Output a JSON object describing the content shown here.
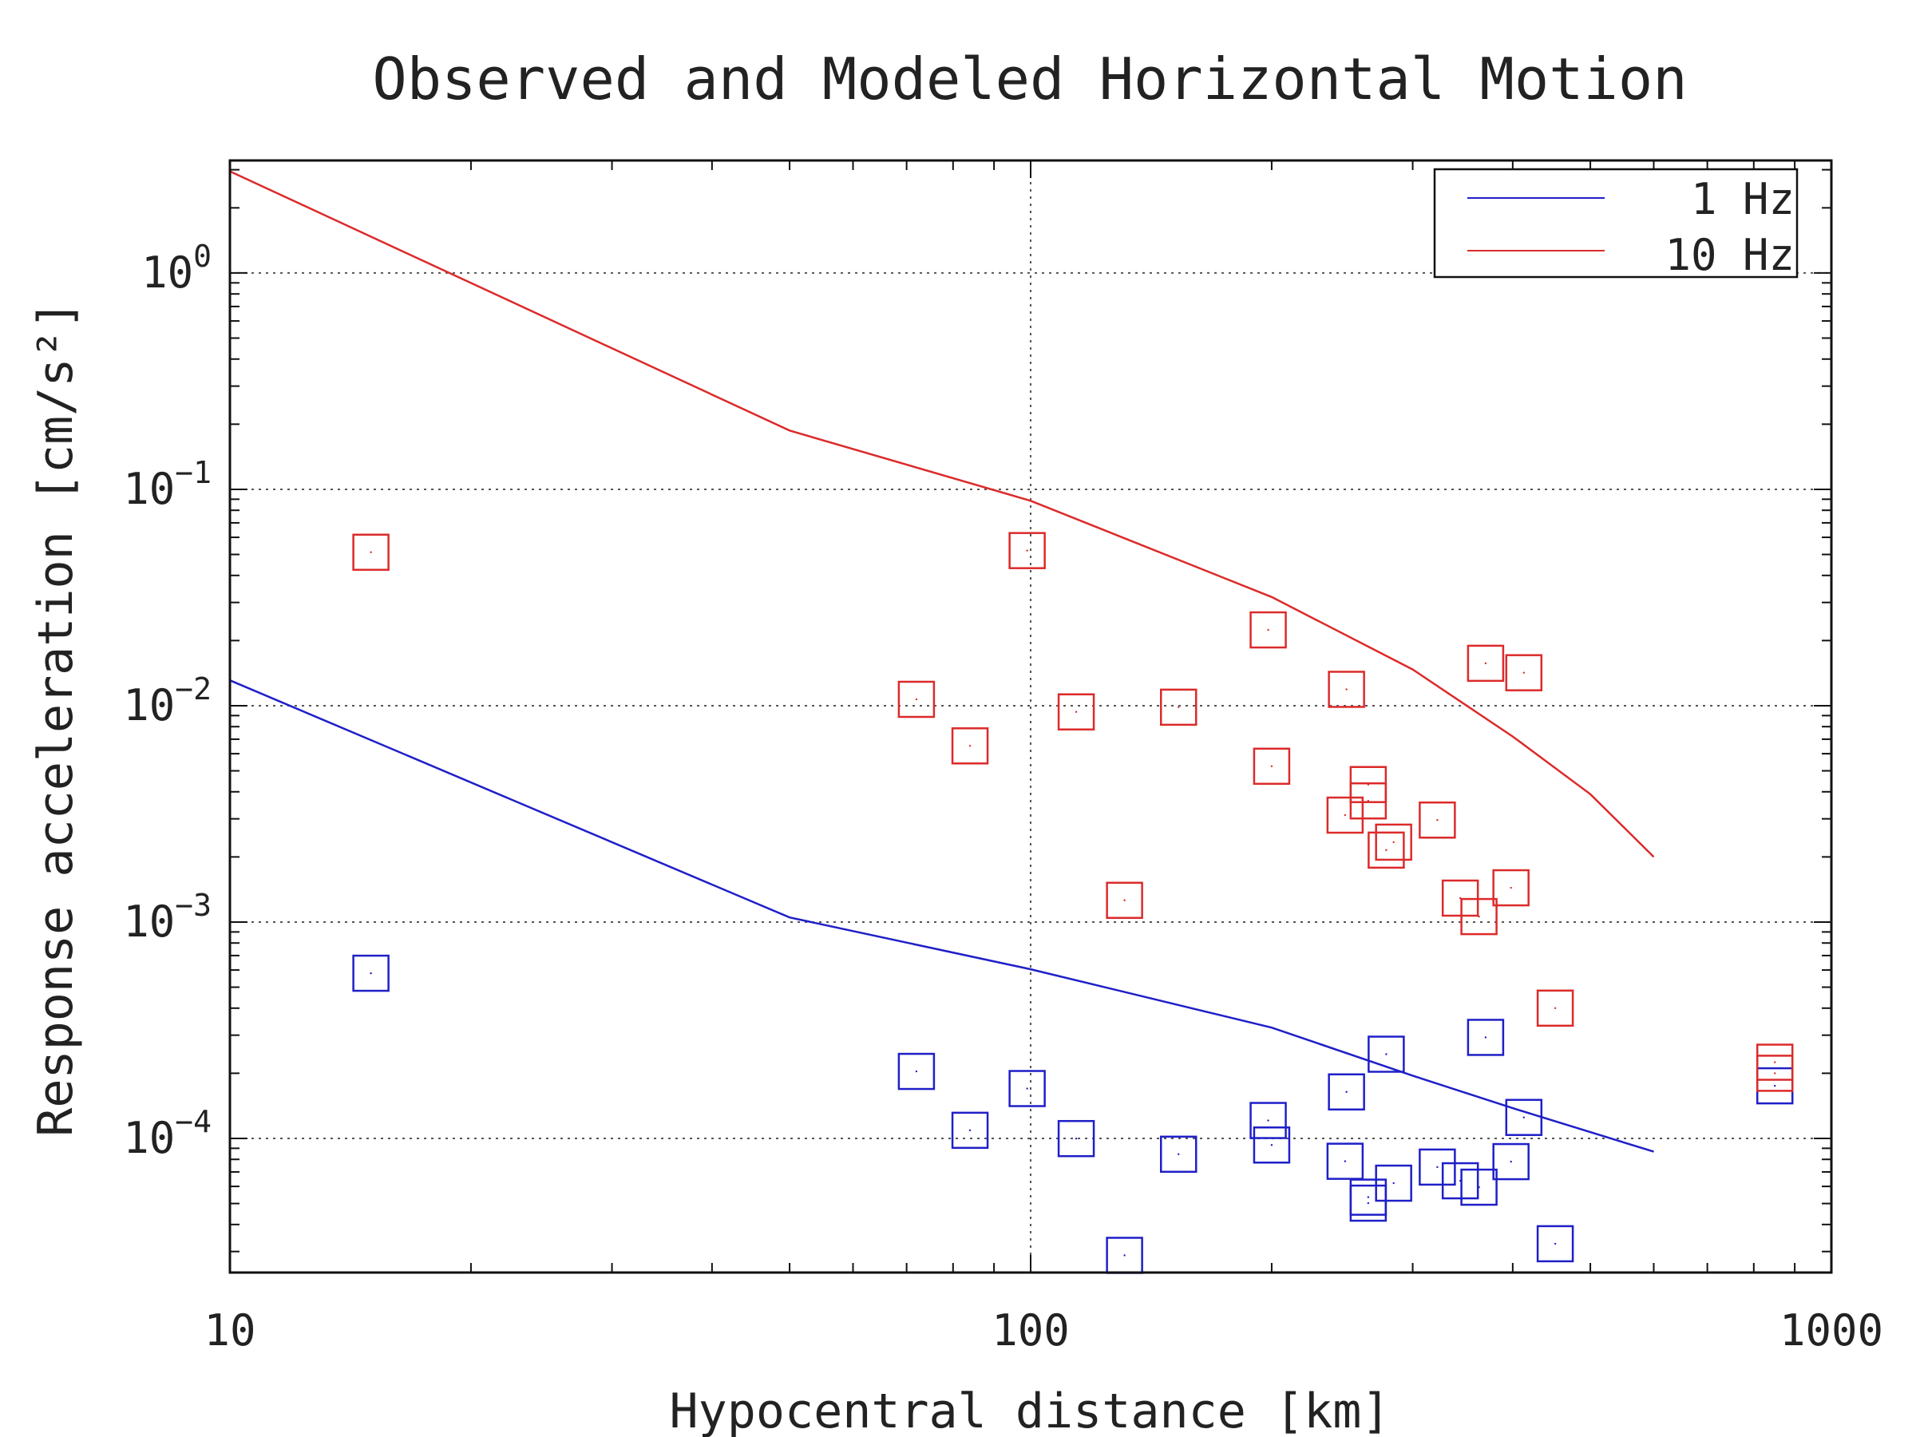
{
  "chart_data": {
    "type": "scatter",
    "title": "Observed and Modeled Horizontal Motion",
    "xlabel": "Hypocentral distance [km]",
    "ylabel": "Response acceleration [cm/s²]",
    "x_scale": "log",
    "y_scale": "log",
    "xlim": [
      10,
      1000
    ],
    "ylim_exp": [
      -4.62,
      0.52
    ],
    "x_ticks": [
      {
        "label": "10",
        "value": 10
      },
      {
        "label": "100",
        "value": 100
      },
      {
        "label": "1000",
        "value": 1000
      }
    ],
    "y_ticks": [
      {
        "base": "10",
        "exp": "0",
        "value": 1
      },
      {
        "base": "10",
        "exp": "−1",
        "value": 0.1
      },
      {
        "base": "10",
        "exp": "−2",
        "value": 0.01
      },
      {
        "base": "10",
        "exp": "−3",
        "value": 0.001
      },
      {
        "base": "10",
        "exp": "−4",
        "value": 0.0001
      }
    ],
    "grid": "dotted at major ticks",
    "legend_position": "top-right",
    "colors": {
      "one_hz": "#1f1fc8",
      "ten_hz": "#dc2a2a"
    },
    "series": [
      {
        "name": "1 Hz",
        "kind": "model-line",
        "color": "#1f1fc8",
        "points": [
          [
            10,
            0.0131
          ],
          [
            50,
            0.00105
          ],
          [
            100,
            0.000605
          ],
          [
            200,
            0.000325
          ],
          [
            300,
            0.000195
          ],
          [
            400,
            0.000138
          ],
          [
            600,
            8.68e-05
          ]
        ]
      },
      {
        "name": "10 Hz",
        "kind": "model-line",
        "color": "#dc2a2a",
        "points": [
          [
            10,
            2.95
          ],
          [
            50,
            0.187
          ],
          [
            100,
            0.0885
          ],
          [
            200,
            0.0318
          ],
          [
            300,
            0.0147
          ],
          [
            400,
            0.0072
          ],
          [
            500,
            0.0039
          ],
          [
            600,
            0.002
          ]
        ]
      },
      {
        "name": "1 Hz observed",
        "kind": "observed",
        "color": "#1f1fc8",
        "points": [
          [
            15,
            0.00058
          ],
          [
            72,
            0.000204
          ],
          [
            84,
            0.000109
          ],
          [
            99,
            0.00017
          ],
          [
            114,
            9.98e-05
          ],
          [
            131,
            2.88e-05
          ],
          [
            153,
            8.45e-05
          ],
          [
            198,
            0.000121
          ],
          [
            200,
            9.32e-05
          ],
          [
            247,
            7.84e-05
          ],
          [
            248,
            0.000164
          ],
          [
            264,
            5.02e-05
          ],
          [
            264,
            5.35e-05
          ],
          [
            278,
            0.000245
          ],
          [
            284,
            6.21e-05
          ],
          [
            322,
            7.37e-05
          ],
          [
            344,
            6.37e-05
          ],
          [
            363,
            5.95e-05
          ],
          [
            370,
            0.000293
          ],
          [
            398,
            7.81e-05
          ],
          [
            413,
            0.000125
          ],
          [
            452,
            3.26e-05
          ],
          [
            850,
            0.000175
          ]
        ]
      },
      {
        "name": "10 Hz observed",
        "kind": "observed",
        "color": "#dc2a2a",
        "points": [
          [
            15,
            0.0512
          ],
          [
            72,
            0.0107
          ],
          [
            84,
            0.00652
          ],
          [
            99,
            0.0521
          ],
          [
            114,
            0.00936
          ],
          [
            131,
            0.00126
          ],
          [
            153,
            0.00984
          ],
          [
            198,
            0.0224
          ],
          [
            200,
            0.00525
          ],
          [
            247,
            0.00312
          ],
          [
            248,
            0.0119
          ],
          [
            264,
            0.00432
          ],
          [
            264,
            0.00363
          ],
          [
            278,
            0.00215
          ],
          [
            284,
            0.00234
          ],
          [
            322,
            0.00296
          ],
          [
            344,
            0.00129
          ],
          [
            363,
            0.00106
          ],
          [
            370,
            0.0157
          ],
          [
            398,
            0.00144
          ],
          [
            413,
            0.0142
          ],
          [
            452,
            0.0004
          ],
          [
            850,
            0.000225
          ],
          [
            850,
            0.0002
          ]
        ]
      }
    ]
  }
}
